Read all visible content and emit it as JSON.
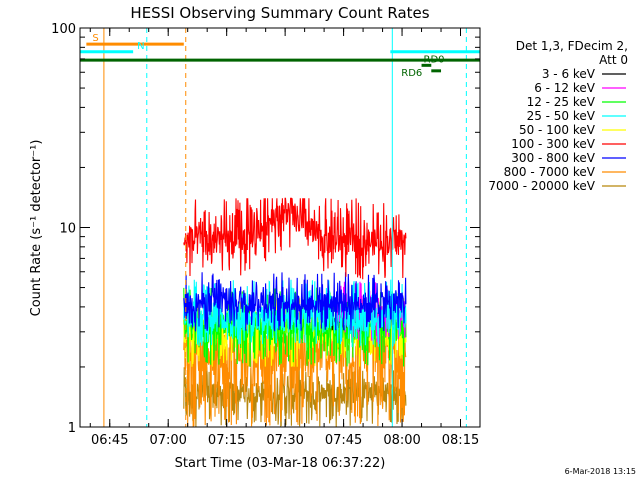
{
  "chart_data": {
    "type": "line",
    "title": "HESSI Observing Summary Count Rates",
    "xlabel": "Start Time (03-Mar-18 06:37:22)",
    "ylabel": "Count Rate (s⁻¹ detector⁻¹)",
    "y_scale": "log",
    "ylim": [
      1,
      100
    ],
    "xlim": [
      "06:37:22",
      "08:20:00"
    ],
    "x_ticks": [
      "06:45",
      "07:00",
      "07:15",
      "07:30",
      "07:45",
      "08:00",
      "08:15"
    ],
    "y_ticks": [
      "1",
      "10",
      "100"
    ],
    "legend": {
      "header": [
        "Det 1,3, FDecim 2,",
        "Att 0"
      ],
      "placement": "right"
    },
    "series": [
      {
        "name": "3 - 6 keV",
        "color": "#000000",
        "start": "07:42:00",
        "end": "07:50:00",
        "low": 3.0,
        "high": 4.0,
        "flat": 3.5
      },
      {
        "name": "6 - 12 keV",
        "color": "#ff00ff",
        "start": "07:43:00",
        "end": "08:01:00",
        "low": 2.6,
        "high": 5.5,
        "flat": 3.6
      },
      {
        "name": "12 - 25 keV",
        "color": "#00ff00",
        "start": "07:04:00",
        "end": "08:01:00",
        "low": 2.0,
        "high": 5.0,
        "flat": 3.2
      },
      {
        "name": "25 - 50 keV",
        "color": "#00ffff",
        "start": "07:04:00",
        "end": "08:01:00",
        "low": 2.5,
        "high": 5.5,
        "flat": 3.5
      },
      {
        "name": "50 - 100 keV",
        "color": "#ffff00",
        "start": "07:04:00",
        "end": "08:01:00",
        "low": 2.0,
        "high": 4.5,
        "flat": 3.0
      },
      {
        "name": "100 - 300 keV",
        "color": "#ff0000",
        "start": "07:04:00",
        "end": "08:01:00",
        "low": 5.5,
        "high": 14.0,
        "flat": 8.5
      },
      {
        "name": "300 - 800 keV",
        "color": "#0000ff",
        "start": "07:04:00",
        "end": "08:01:00",
        "low": 3.0,
        "high": 6.0,
        "flat": 4.2
      },
      {
        "name": "800 - 7000 keV",
        "color": "#ff8c00",
        "start": "07:04:00",
        "end": "08:01:00",
        "low": 1.0,
        "high": 4.0,
        "flat": 2.4
      },
      {
        "name": "7000 - 20000 keV",
        "color": "#b8860b",
        "start": "07:04:00",
        "end": "08:01:00",
        "low": 1.0,
        "high": 2.0,
        "flat": 1.5
      }
    ],
    "annotations": {
      "flags": [
        {
          "label": "S",
          "color": "#ff8c00",
          "start": "06:39:00",
          "end": "07:04:00",
          "y": 83
        },
        {
          "label": "N",
          "color": "#00ffff",
          "start": "06:37:22",
          "end": "06:51:00",
          "y": 76
        },
        {
          "label": "",
          "color": "#00ffff",
          "start": "07:57:00",
          "end": "08:20:00",
          "y": 76
        },
        {
          "label": "",
          "color": "#006400",
          "start": "06:37:22",
          "end": "08:20:00",
          "y": 69
        },
        {
          "label": "RD0",
          "color": "#006400",
          "start": "08:05:00",
          "end": "08:07:30",
          "y": 65
        },
        {
          "label": "RD6",
          "color": "#006400",
          "start": "08:07:30",
          "end": "08:10:00",
          "y": 61
        }
      ],
      "vlines": [
        {
          "time": "06:43:30",
          "color": "#ff8c00",
          "style": "solid"
        },
        {
          "time": "06:54:30",
          "color": "#00ffff",
          "style": "dashed"
        },
        {
          "time": "07:04:30",
          "color": "#ff8c00",
          "style": "dashed"
        },
        {
          "time": "07:57:30",
          "color": "#00ffff",
          "style": "solid"
        },
        {
          "time": "08:16:30",
          "color": "#00ffff",
          "style": "dashed"
        }
      ]
    },
    "grid": false
  },
  "footer": {
    "timestamp": "6-Mar-2018 13:15"
  }
}
